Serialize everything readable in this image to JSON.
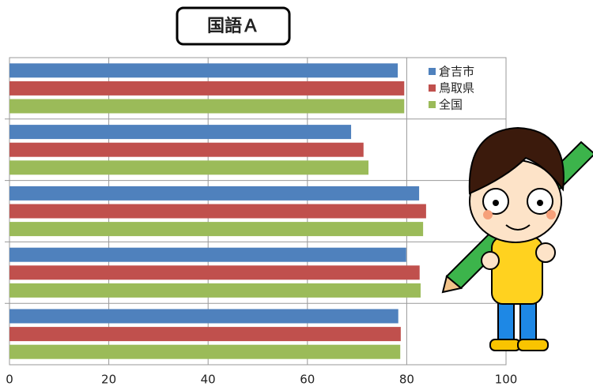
{
  "chart_data": {
    "type": "hbar",
    "title": "国語Ａ",
    "categories": [
      null,
      null,
      null,
      null,
      null
    ],
    "series": [
      {
        "name": "倉吉市",
        "color": "#4f81bd",
        "values": [
          78.2,
          68.8,
          82.5,
          79.9,
          78.3
        ]
      },
      {
        "name": "鳥取県",
        "color": "#c0504d",
        "values": [
          79.5,
          71.3,
          83.9,
          82.6,
          78.8
        ]
      },
      {
        "name": "全国",
        "color": "#9bbb59",
        "values": [
          79.5,
          72.3,
          83.3,
          82.8,
          78.7
        ]
      }
    ],
    "xlim": [
      0,
      100
    ],
    "xticks": [
      0,
      20,
      40,
      60,
      80,
      100
    ],
    "grid": true,
    "legend": "upper right"
  }
}
